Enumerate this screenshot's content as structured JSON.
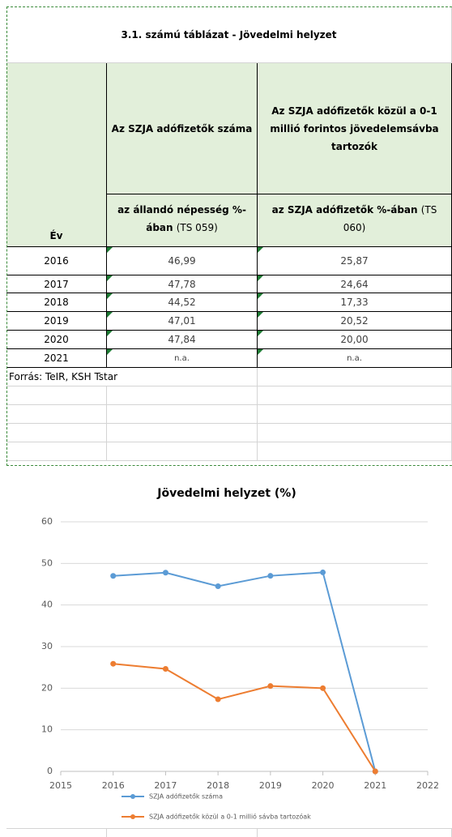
{
  "table": {
    "title": "3.1. számú táblázat - Jövedelmi helyzet",
    "headers": [
      "Év",
      "Az SZJA adófizetők száma",
      "Az SZJA adófizetők közül a 0-1 millió forintos jövedelemsávba tartozók"
    ],
    "subheaders": [
      {
        "text": "az állandó népesség %-ában",
        "code": "(TS 059)"
      },
      {
        "text": "az SZJA adófizetők %-ában",
        "code": "(TS 060)"
      }
    ],
    "rows": [
      [
        "2016",
        "46,99",
        "25,87"
      ],
      [
        "2017",
        "47,78",
        "24,64"
      ],
      [
        "2018",
        "44,52",
        "17,33"
      ],
      [
        "2019",
        "47,01",
        "20,52"
      ],
      [
        "2020",
        "47,84",
        "20,00"
      ],
      [
        "2021",
        "n.a.",
        "n.a."
      ]
    ],
    "source": "Forrás: TeIR, KSH Tstar"
  },
  "chart_data": {
    "type": "line",
    "title": "Jövedelmi helyzet (%)",
    "x": [
      2016,
      2017,
      2018,
      2019,
      2020,
      2021
    ],
    "series": [
      {
        "name": "SZJA adófizetők száma",
        "color": "#5b9bd5",
        "values": [
          46.99,
          47.78,
          44.52,
          47.01,
          47.84,
          0
        ]
      },
      {
        "name": "SZJA adófizetők közül a 0-1 millió sávba tartozóak",
        "color": "#ed7d31",
        "values": [
          25.87,
          24.64,
          17.33,
          20.52,
          20.0,
          0
        ]
      }
    ],
    "xlim": [
      2015,
      2022
    ],
    "xticks": [
      2015,
      2016,
      2017,
      2018,
      2019,
      2020,
      2021,
      2022
    ],
    "ylim": [
      0,
      60
    ],
    "yticks": [
      0,
      10,
      20,
      30,
      40,
      50,
      60
    ],
    "grid": true,
    "legend": "bottom"
  }
}
